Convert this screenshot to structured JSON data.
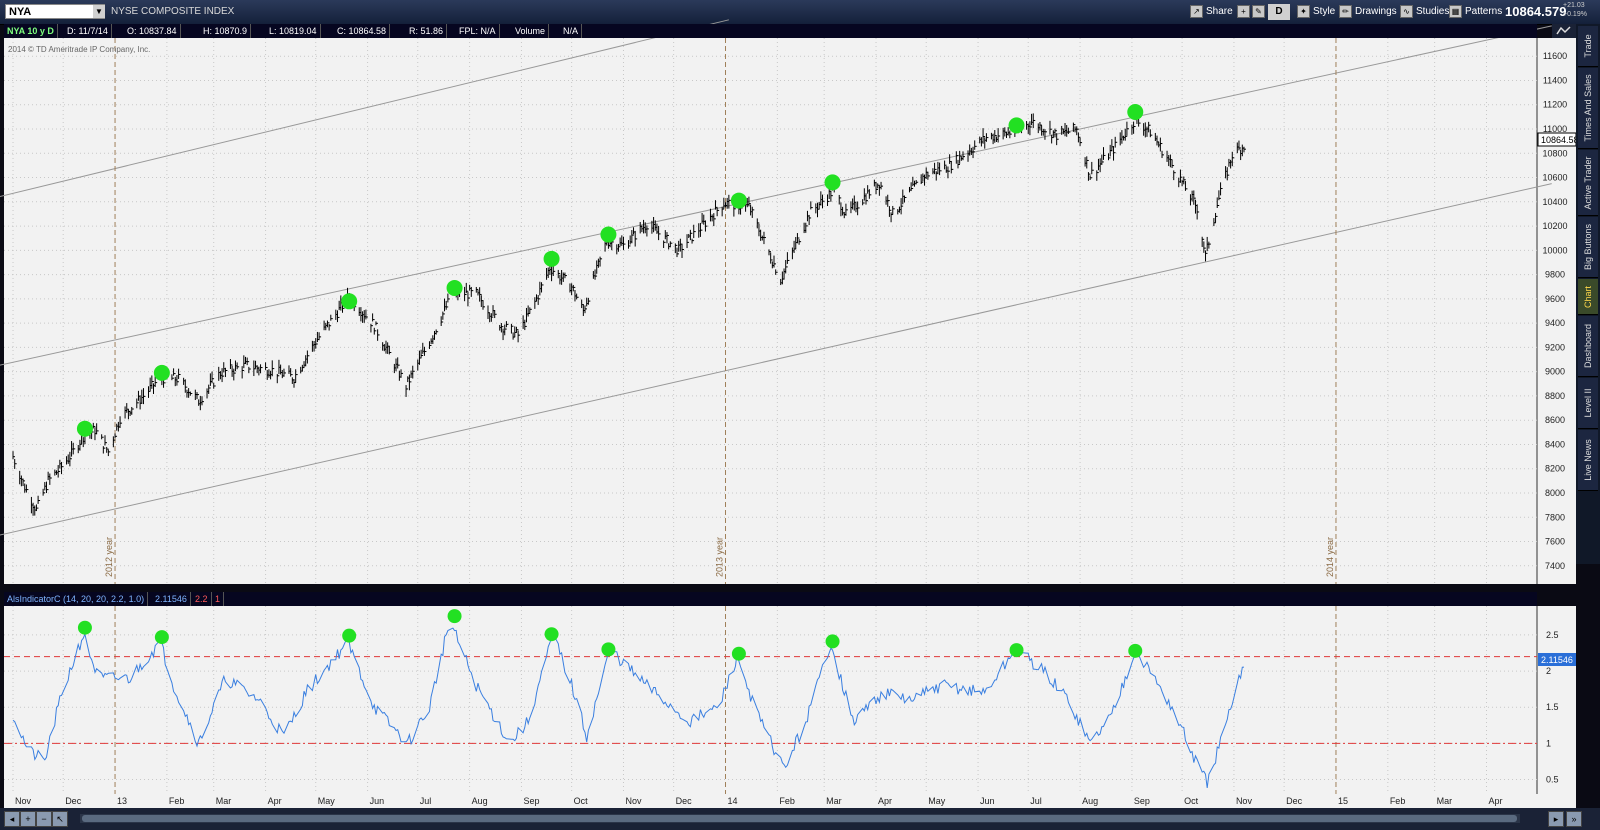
{
  "toolbar": {
    "symbol": "NYA",
    "symbol_description": "NYSE COMPOSITE INDEX",
    "share_label": "Share",
    "timeframe_label": "D",
    "style_label": "Style",
    "drawings_label": "Drawings",
    "studies_label": "Studies",
    "patterns_label": "Patterns",
    "last_price": "10864.579",
    "change_abs": "+21.03",
    "change_pct": "+0.19%"
  },
  "infobar": {
    "chart_label": "NYA 10 y D",
    "date": "D: 11/7/14",
    "open": "O: 10837.84",
    "high": "H: 10870.9",
    "low": "L: 10819.04",
    "close": "C: 10864.58",
    "range": "R: 51.86",
    "fpl": "FPL: N/A",
    "volume_label": "Volume",
    "volume_value": "N/A"
  },
  "indicator_bar": {
    "name": "AlsIndicatorC (14, 20, 20, 2.2, 1.0)",
    "value": "2.11546",
    "threshold": "2.2",
    "flag": "1"
  },
  "sidebar": {
    "tabs": [
      "Trade",
      "Times And Sales",
      "Active Trader",
      "Big Buttons",
      "Chart",
      "Dashboard",
      "Level II",
      "Live News"
    ],
    "active": "Chart"
  },
  "colors": {
    "price_bars": "#000000",
    "highlight": "#22e022",
    "indicator": "#3a7fe0",
    "threshold_line": "#e03a3a",
    "channel": "#999999",
    "plot_bg": "#f2f2f2"
  },
  "chart_data": [
    {
      "type": "ohlc",
      "copyright": "2014 © TD Ameritrade IP Company, Inc.",
      "price_label": "10864.58",
      "ylim": [
        7250,
        11750
      ],
      "y_ticks": [
        7400,
        7600,
        7800,
        8000,
        8200,
        8400,
        8600,
        8800,
        9000,
        9200,
        9400,
        9600,
        9800,
        10000,
        10200,
        10400,
        10600,
        10800,
        11000,
        11200,
        11400,
        11600
      ],
      "year_markers": [
        "2012 year",
        "2013 year",
        "2014 year"
      ],
      "close_path": [
        [
          "2012-11-01",
          8300
        ],
        [
          "2012-11-08",
          8050
        ],
        [
          "2012-11-15",
          7860
        ],
        [
          "2012-11-22",
          8100
        ],
        [
          "2012-11-29",
          8200
        ],
        [
          "2012-12-06",
          8320
        ],
        [
          "2012-12-13",
          8470
        ],
        [
          "2012-12-20",
          8520
        ],
        [
          "2012-12-28",
          8340
        ],
        [
          "2013-01-04",
          8620
        ],
        [
          "2013-01-18",
          8800
        ],
        [
          "2013-01-28",
          8950
        ],
        [
          "2013-02-08",
          8940
        ],
        [
          "2013-02-20",
          8760
        ],
        [
          "2013-03-05",
          8990
        ],
        [
          "2013-03-20",
          9050
        ],
        [
          "2013-04-05",
          9010
        ],
        [
          "2013-04-18",
          8950
        ],
        [
          "2013-05-01",
          9250
        ],
        [
          "2013-05-21",
          9620
        ],
        [
          "2013-06-05",
          9380
        ],
        [
          "2013-06-24",
          8880
        ],
        [
          "2013-07-10",
          9300
        ],
        [
          "2013-07-22",
          9650
        ],
        [
          "2013-08-05",
          9640
        ],
        [
          "2013-08-20",
          9380
        ],
        [
          "2013-08-30",
          9300
        ],
        [
          "2013-09-10",
          9600
        ],
        [
          "2013-09-18",
          9860
        ],
        [
          "2013-10-01",
          9700
        ],
        [
          "2013-10-08",
          9500
        ],
        [
          "2013-10-22",
          10080
        ],
        [
          "2013-11-01",
          10040
        ],
        [
          "2013-11-15",
          10220
        ],
        [
          "2013-12-04",
          10000
        ],
        [
          "2013-12-31",
          10390
        ],
        [
          "2014-01-15",
          10360
        ],
        [
          "2014-02-03",
          9760
        ],
        [
          "2014-02-20",
          10300
        ],
        [
          "2014-03-07",
          10500
        ],
        [
          "2014-03-14",
          10290
        ],
        [
          "2014-04-03",
          10560
        ],
        [
          "2014-04-11",
          10300
        ],
        [
          "2014-04-30",
          10620
        ],
        [
          "2014-05-15",
          10700
        ],
        [
          "2014-06-06",
          10930
        ],
        [
          "2014-06-24",
          10980
        ],
        [
          "2014-07-03",
          11060
        ],
        [
          "2014-07-18",
          10950
        ],
        [
          "2014-07-30",
          11000
        ],
        [
          "2014-08-07",
          10620
        ],
        [
          "2014-08-20",
          10820
        ],
        [
          "2014-09-03",
          11080
        ],
        [
          "2014-09-12",
          10980
        ],
        [
          "2014-09-25",
          10700
        ],
        [
          "2014-10-10",
          10350
        ],
        [
          "2014-10-15",
          9950
        ],
        [
          "2014-10-22",
          10380
        ],
        [
          "2014-10-31",
          10790
        ],
        [
          "2014-11-07",
          10864
        ]
      ],
      "highlight_points": [
        [
          "2012-12-14",
          8530
        ],
        [
          "2013-01-29",
          8990
        ],
        [
          "2013-05-21",
          9580
        ],
        [
          "2013-07-23",
          9690
        ],
        [
          "2013-09-19",
          9930
        ],
        [
          "2013-10-23",
          10130
        ],
        [
          "2014-01-09",
          10410
        ],
        [
          "2014-03-06",
          10560
        ],
        [
          "2014-06-24",
          11030
        ],
        [
          "2014-09-03",
          11140
        ]
      ],
      "channel_lines": [
        [
          [
            "2012-10-23",
            9050
          ],
          [
            "2015-05-10",
            11850
          ]
        ],
        [
          [
            "2012-10-23",
            7650
          ],
          [
            "2015-05-10",
            10550
          ]
        ],
        [
          [
            "2012-10-23",
            10440
          ],
          [
            "2014-01-03",
            11900
          ]
        ]
      ]
    },
    {
      "type": "line",
      "name": "AlsIndicatorC",
      "ylim": [
        0.3,
        2.9
      ],
      "y_ticks": [
        0.5,
        1,
        1.5,
        2,
        2.5
      ],
      "hlines": [
        2.2,
        1.0
      ],
      "value_label": "2.11546",
      "path": [
        [
          "2012-11-01",
          1.4
        ],
        [
          "2012-11-10",
          0.9
        ],
        [
          "2012-11-20",
          0.75
        ],
        [
          "2012-11-28",
          1.5
        ],
        [
          "2012-12-05",
          2.0
        ],
        [
          "2012-12-13",
          2.5
        ],
        [
          "2012-12-22",
          1.9
        ],
        [
          "2013-01-10",
          1.9
        ],
        [
          "2013-01-28",
          2.4
        ],
        [
          "2013-02-05",
          1.8
        ],
        [
          "2013-02-20",
          1.0
        ],
        [
          "2013-03-08",
          1.9
        ],
        [
          "2013-03-28",
          1.6
        ],
        [
          "2013-04-12",
          1.1
        ],
        [
          "2013-04-25",
          1.7
        ],
        [
          "2013-05-20",
          2.4
        ],
        [
          "2013-06-05",
          1.5
        ],
        [
          "2013-06-25",
          1.0
        ],
        [
          "2013-07-08",
          1.5
        ],
        [
          "2013-07-20",
          2.7
        ],
        [
          "2013-08-05",
          1.8
        ],
        [
          "2013-08-25",
          1.0
        ],
        [
          "2013-09-05",
          1.3
        ],
        [
          "2013-09-20",
          2.5
        ],
        [
          "2013-10-01",
          1.8
        ],
        [
          "2013-10-10",
          1.1
        ],
        [
          "2013-10-24",
          2.3
        ],
        [
          "2013-11-10",
          1.9
        ],
        [
          "2013-11-25",
          1.6
        ],
        [
          "2013-12-10",
          1.3
        ],
        [
          "2013-12-28",
          1.5
        ],
        [
          "2014-01-08",
          2.2
        ],
        [
          "2014-01-20",
          1.4
        ],
        [
          "2014-02-05",
          0.65
        ],
        [
          "2014-02-18",
          1.3
        ],
        [
          "2014-03-05",
          2.4
        ],
        [
          "2014-03-18",
          1.3
        ],
        [
          "2014-04-05",
          1.7
        ],
        [
          "2014-04-22",
          1.6
        ],
        [
          "2014-05-10",
          1.8
        ],
        [
          "2014-06-05",
          1.7
        ],
        [
          "2014-06-24",
          2.3
        ],
        [
          "2014-07-10",
          2.0
        ],
        [
          "2014-07-25",
          1.6
        ],
        [
          "2014-08-07",
          1.0
        ],
        [
          "2014-08-20",
          1.4
        ],
        [
          "2014-09-03",
          2.3
        ],
        [
          "2014-09-20",
          1.7
        ],
        [
          "2014-10-01",
          1.2
        ],
        [
          "2014-10-08",
          0.8
        ],
        [
          "2014-10-16",
          0.45
        ],
        [
          "2014-10-28",
          1.3
        ],
        [
          "2014-11-07",
          2.11
        ]
      ],
      "highlight_points": [
        [
          "2012-12-14",
          2.6
        ],
        [
          "2013-01-29",
          2.47
        ],
        [
          "2013-05-21",
          2.49
        ],
        [
          "2013-07-23",
          2.76
        ],
        [
          "2013-09-19",
          2.51
        ],
        [
          "2013-10-23",
          2.3
        ],
        [
          "2014-01-09",
          2.24
        ],
        [
          "2014-03-06",
          2.41
        ],
        [
          "2014-06-24",
          2.29
        ],
        [
          "2014-09-03",
          2.28
        ]
      ]
    }
  ],
  "x_axis": {
    "labels": [
      [
        "2012-11-01",
        "Nov"
      ],
      [
        "2012-12-01",
        "Dec"
      ],
      [
        "2013-01-01",
        "13"
      ],
      [
        "2013-02-01",
        "Feb"
      ],
      [
        "2013-03-01",
        "Mar"
      ],
      [
        "2013-04-01",
        "Apr"
      ],
      [
        "2013-05-01",
        "May"
      ],
      [
        "2013-06-01",
        "Jun"
      ],
      [
        "2013-07-01",
        "Jul"
      ],
      [
        "2013-08-01",
        "Aug"
      ],
      [
        "2013-09-01",
        "Sep"
      ],
      [
        "2013-10-01",
        "Oct"
      ],
      [
        "2013-11-01",
        "Nov"
      ],
      [
        "2013-12-01",
        "Dec"
      ],
      [
        "2014-01-01",
        "14"
      ],
      [
        "2014-02-01",
        "Feb"
      ],
      [
        "2014-03-01",
        "Mar"
      ],
      [
        "2014-04-01",
        "Apr"
      ],
      [
        "2014-05-01",
        "May"
      ],
      [
        "2014-06-01",
        "Jun"
      ],
      [
        "2014-07-01",
        "Jul"
      ],
      [
        "2014-08-01",
        "Aug"
      ],
      [
        "2014-09-01",
        "Sep"
      ],
      [
        "2014-10-01",
        "Oct"
      ],
      [
        "2014-11-01",
        "Nov"
      ],
      [
        "2014-12-01",
        "Dec"
      ],
      [
        "2015-01-01",
        "15"
      ],
      [
        "2015-02-01",
        "Feb"
      ],
      [
        "2015-03-01",
        "Mar"
      ],
      [
        "2015-04-01",
        "Apr"
      ]
    ]
  }
}
